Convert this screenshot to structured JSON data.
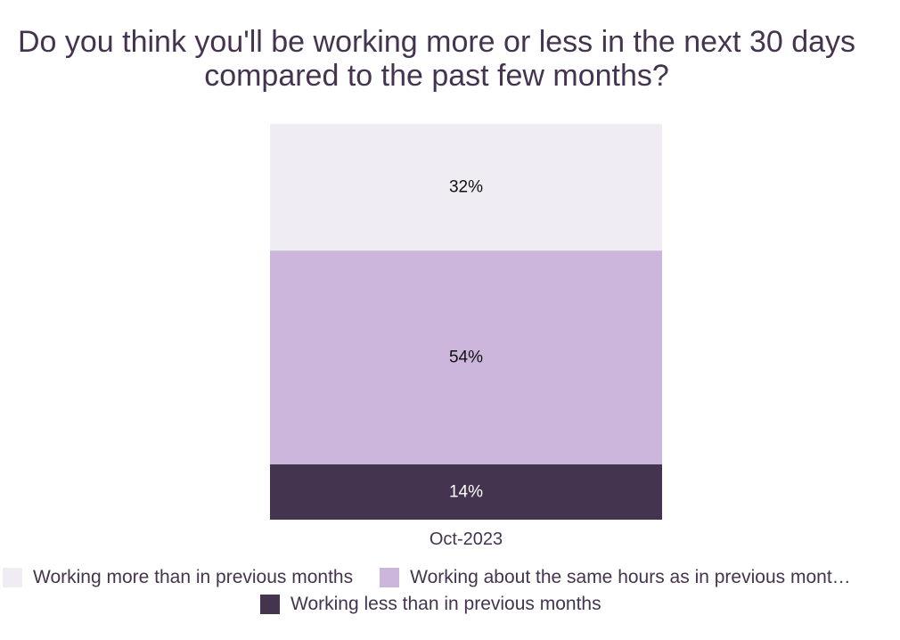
{
  "chart_data": {
    "type": "bar",
    "stacked": true,
    "title": "Do you think you'll be working more or less in the next 30 days compared to the past few months?",
    "categories": [
      "Oct-2023"
    ],
    "series": [
      {
        "name": "Working less than in previous months",
        "values": [
          14
        ],
        "label": "14%",
        "color": "#45344f"
      },
      {
        "name": "Working about the same hours as in previous mont…",
        "values": [
          54
        ],
        "label": "54%",
        "color": "#cdb6dc"
      },
      {
        "name": "Working more than in previous months",
        "values": [
          32
        ],
        "label": "32%",
        "color": "#f0ecf3"
      }
    ],
    "ylim": [
      0,
      100
    ],
    "grid": false,
    "legend_position": "bottom"
  },
  "legend": {
    "items": [
      {
        "label": "Working more than in previous months",
        "color": "#f0ecf3"
      },
      {
        "label": "Working about the same hours as in previous mont…",
        "color": "#cdb6dc"
      },
      {
        "label": "Working less than in previous months",
        "color": "#45344f"
      }
    ]
  }
}
